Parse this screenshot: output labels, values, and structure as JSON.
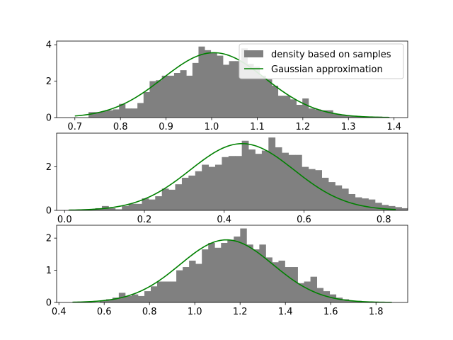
{
  "colors": {
    "hist": "#808080",
    "curve": "#008000",
    "axes": "#000000",
    "background": "#ffffff"
  },
  "legend": {
    "placement": "top-right of first panel",
    "entries": [
      {
        "label": "density based on samples",
        "kind": "patch",
        "color": "#808080"
      },
      {
        "label": "Gaussian approximation",
        "kind": "line",
        "color": "#008000"
      }
    ]
  },
  "chart_data": [
    {
      "type": "bar",
      "title": "",
      "xlabel": "",
      "ylabel": "",
      "xlim": [
        0.66,
        1.43
      ],
      "ylim": [
        0,
        4.2
      ],
      "xticks": [
        "0.7",
        "0.8",
        "0.9",
        "1.0",
        "1.1",
        "1.2",
        "1.3",
        "1.4"
      ],
      "xtick_values": [
        0.7,
        0.8,
        0.9,
        1.0,
        1.1,
        1.2,
        1.3,
        1.4
      ],
      "yticks": [
        "0",
        "2",
        "4"
      ],
      "ytick_values": [
        0,
        2,
        4
      ],
      "hist": {
        "name": "density based on samples",
        "x_start": 0.73,
        "bin_width": 0.0134,
        "heights": [
          0.3,
          0.3,
          0.35,
          0.4,
          0.45,
          0.75,
          0.5,
          0.5,
          0.8,
          1.4,
          2.0,
          2.05,
          2.3,
          2.3,
          2.45,
          2.6,
          2.3,
          3.0,
          3.9,
          3.7,
          3.55,
          3.4,
          2.9,
          3.1,
          3.1,
          3.8,
          2.95,
          2.8,
          2.3,
          2.1,
          1.75,
          1.2,
          1.2,
          1.0,
          0.7,
          1.05,
          0.5,
          0.45,
          0.4,
          0.4,
          0.2,
          0.15,
          0.1,
          0.1,
          0.05,
          0.05,
          0.05,
          0.05
        ]
      },
      "curve": {
        "name": "Gaussian approximation",
        "mean": 1.005,
        "sd": 0.112,
        "x_range": [
          0.7,
          1.39
        ]
      }
    },
    {
      "type": "bar",
      "title": "",
      "xlabel": "",
      "ylabel": "",
      "xlim": [
        -0.02,
        0.86
      ],
      "ylim": [
        0,
        3.55
      ],
      "xticks": [
        "0.0",
        "0.2",
        "0.4",
        "0.6",
        "0.8"
      ],
      "xtick_values": [
        0.0,
        0.2,
        0.4,
        0.6,
        0.8
      ],
      "yticks": [
        "0",
        "2"
      ],
      "ytick_values": [
        0,
        2
      ],
      "hist": {
        "name": "density based on samples",
        "x_start": 0.01,
        "bin_width": 0.0167,
        "heights": [
          0.02,
          0.02,
          0.05,
          0.05,
          0.1,
          0.2,
          0.1,
          0.05,
          0.2,
          0.3,
          0.3,
          0.55,
          0.5,
          0.65,
          1.0,
          0.95,
          1.2,
          1.5,
          1.6,
          1.8,
          2.1,
          2.0,
          2.1,
          2.45,
          2.5,
          2.5,
          3.2,
          2.8,
          2.6,
          2.75,
          3.35,
          2.9,
          2.65,
          2.55,
          2.55,
          2.0,
          1.9,
          1.85,
          1.5,
          1.3,
          1.15,
          1.0,
          0.75,
          0.6,
          0.55,
          0.5,
          0.35,
          0.25,
          0.2,
          0.15,
          0.1,
          0.05,
          0.05,
          0.15
        ]
      },
      "curve": {
        "name": "Gaussian approximation",
        "mean": 0.445,
        "sd": 0.13,
        "x_range": [
          0.01,
          0.83
        ]
      }
    },
    {
      "type": "bar",
      "title": "",
      "xlabel": "",
      "ylabel": "",
      "xlim": [
        0.39,
        1.94
      ],
      "ylim": [
        0,
        2.4
      ],
      "xticks": [
        "0.4",
        "0.6",
        "0.8",
        "1.0",
        "1.2",
        "1.4",
        "1.6",
        "1.8"
      ],
      "xtick_values": [
        0.4,
        0.6,
        0.8,
        1.0,
        1.2,
        1.4,
        1.6,
        1.8
      ],
      "yticks": [
        "0",
        "1",
        "2"
      ],
      "ytick_values": [
        0,
        1,
        2
      ],
      "hist": {
        "name": "density based on samples",
        "x_start": 0.58,
        "bin_width": 0.0282,
        "heights": [
          0.05,
          0.1,
          0.15,
          0.3,
          0.2,
          0.25,
          0.2,
          0.35,
          0.5,
          0.65,
          0.65,
          0.65,
          1.0,
          1.1,
          1.3,
          1.2,
          1.65,
          1.85,
          1.7,
          1.85,
          1.95,
          2.05,
          2.3,
          1.8,
          1.65,
          1.8,
          1.4,
          1.25,
          1.3,
          1.1,
          1.1,
          0.6,
          0.65,
          0.8,
          0.45,
          0.35,
          0.25,
          0.15,
          0.1,
          0.05,
          0.05
        ]
      },
      "curve": {
        "name": "Gaussian approximation",
        "mean": 1.14,
        "sd": 0.205,
        "x_range": [
          0.46,
          1.87
        ]
      }
    }
  ]
}
